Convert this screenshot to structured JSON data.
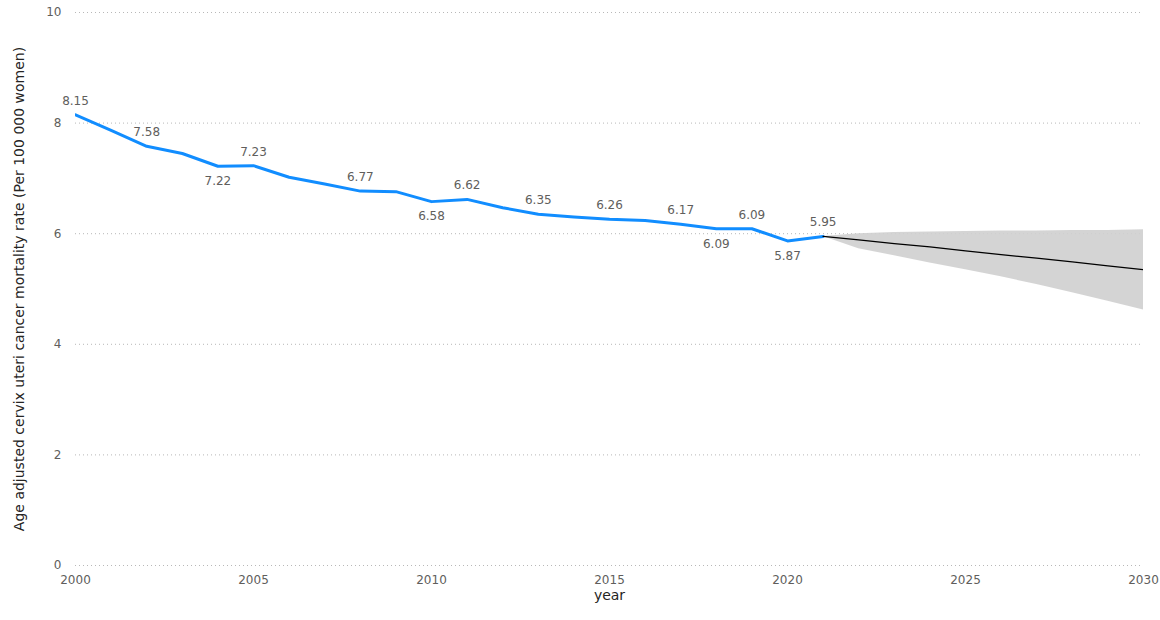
{
  "chart_data": {
    "type": "line",
    "x_label": "year",
    "y_label": "Age adjusted cervix uteri cancer mortality rate (Per 100 000 women)",
    "x": [
      2000,
      2001,
      2002,
      2003,
      2004,
      2005,
      2006,
      2007,
      2008,
      2009,
      2010,
      2011,
      2012,
      2013,
      2014,
      2015,
      2016,
      2017,
      2018,
      2019,
      2020,
      2021,
      2022,
      2023,
      2024,
      2025,
      2026,
      2027,
      2028,
      2029,
      2030
    ],
    "series": [
      {
        "type": "line",
        "color": "#118dff",
        "values": [
          8.15,
          7.87,
          7.58,
          7.45,
          7.22,
          7.23,
          7.02,
          6.9,
          6.77,
          6.76,
          6.58,
          6.62,
          6.47,
          6.35,
          6.3,
          6.26,
          6.24,
          6.17,
          6.09,
          6.09,
          5.87,
          5.95,
          null,
          null,
          null,
          null,
          null,
          null,
          null,
          null,
          null
        ],
        "data_labels": true,
        "value_labels": [
          "8.15",
          null,
          "7.58",
          null,
          "7.22",
          "7.23",
          null,
          null,
          "6.77",
          null,
          "6.58",
          "6.62",
          null,
          "6.35",
          null,
          "6.26",
          null,
          "6.17",
          "6.09",
          "6.09",
          "5.87",
          "5.95",
          null,
          null,
          null,
          null,
          null,
          null,
          null,
          null,
          null
        ]
      },
      {
        "type": "line",
        "color": "#000000",
        "values": [
          null,
          null,
          null,
          null,
          null,
          null,
          null,
          null,
          null,
          null,
          null,
          null,
          null,
          null,
          null,
          null,
          null,
          null,
          null,
          null,
          null,
          5.95,
          5.89,
          5.82,
          5.76,
          5.69,
          5.62,
          5.56,
          5.49,
          5.42,
          5.35
        ],
        "lower": [
          null,
          null,
          null,
          null,
          null,
          null,
          null,
          null,
          null,
          null,
          null,
          null,
          null,
          null,
          null,
          null,
          null,
          null,
          null,
          null,
          null,
          5.95,
          5.73,
          5.6,
          5.47,
          5.35,
          5.22,
          5.08,
          4.93,
          4.78,
          4.62
        ],
        "upper": [
          null,
          null,
          null,
          null,
          null,
          null,
          null,
          null,
          null,
          null,
          null,
          null,
          null,
          null,
          null,
          null,
          null,
          null,
          null,
          null,
          null,
          5.95,
          6.0,
          6.02,
          6.03,
          6.04,
          6.05,
          6.05,
          6.06,
          6.06,
          6.07
        ]
      }
    ],
    "xlim": [
      2000,
      2030
    ],
    "xticks": [
      2000,
      2005,
      2010,
      2015,
      2020,
      2025,
      2030
    ],
    "ylim": [
      0,
      10
    ],
    "yticks": [
      0,
      2,
      4,
      6,
      8,
      10
    ],
    "grid": true
  }
}
